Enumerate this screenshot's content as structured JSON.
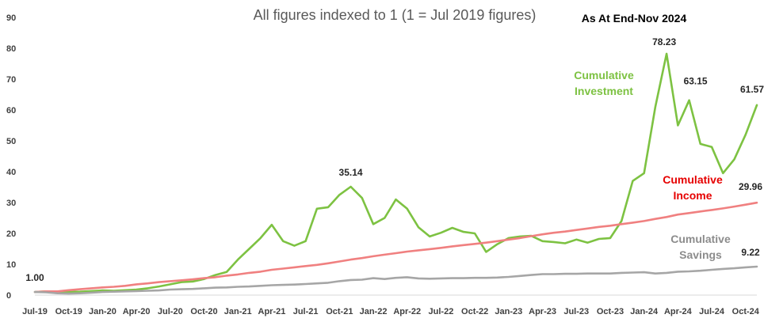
{
  "chart_data": {
    "type": "line",
    "title": "All figures indexed to 1 (1 = Jul 2019 figures)",
    "subtitle": "As At End-Nov 2024",
    "xlabel": "",
    "ylabel": "",
    "ylim": [
      0,
      90
    ],
    "yticks": [
      0,
      10,
      20,
      30,
      40,
      50,
      60,
      70,
      80,
      90
    ],
    "grid": false,
    "x": [
      "Jul-19",
      "Aug-19",
      "Sep-19",
      "Oct-19",
      "Nov-19",
      "Dec-19",
      "Jan-20",
      "Feb-20",
      "Mar-20",
      "Apr-20",
      "May-20",
      "Jun-20",
      "Jul-20",
      "Aug-20",
      "Sep-20",
      "Oct-20",
      "Nov-20",
      "Dec-20",
      "Jan-21",
      "Feb-21",
      "Mar-21",
      "Apr-21",
      "May-21",
      "Jun-21",
      "Jul-21",
      "Aug-21",
      "Sep-21",
      "Oct-21",
      "Nov-21",
      "Dec-21",
      "Jan-22",
      "Feb-22",
      "Mar-22",
      "Apr-22",
      "May-22",
      "Jun-22",
      "Jul-22",
      "Aug-22",
      "Sep-22",
      "Oct-22",
      "Nov-22",
      "Dec-22",
      "Jan-23",
      "Feb-23",
      "Mar-23",
      "Apr-23",
      "May-23",
      "Jun-23",
      "Jul-23",
      "Aug-23",
      "Sep-23",
      "Oct-23",
      "Nov-23",
      "Dec-23",
      "Jan-24",
      "Feb-24",
      "Mar-24",
      "Apr-24",
      "May-24",
      "Jun-24",
      "Jul-24",
      "Aug-24",
      "Sep-24",
      "Oct-24",
      "Nov-24"
    ],
    "xtick_labels": [
      "Jul-19",
      "Oct-19",
      "Jan-20",
      "Apr-20",
      "Jul-20",
      "Oct-20",
      "Jan-21",
      "Apr-21",
      "Jul-21",
      "Oct-21",
      "Jan-22",
      "Apr-22",
      "Jul-22",
      "Oct-22",
      "Jan-23",
      "Apr-23",
      "Jul-23",
      "Oct-23",
      "Jan-24",
      "Apr-24",
      "Jul-24",
      "Oct-24"
    ],
    "series": [
      {
        "name": "Cumulative Investment",
        "name_lines": [
          "Cumulative",
          "Investment"
        ],
        "color": "#7dc242",
        "values": [
          1.0,
          1.2,
          0.8,
          1.0,
          1.1,
          1.3,
          1.5,
          1.4,
          1.6,
          1.8,
          2.2,
          2.8,
          3.5,
          4.2,
          4.4,
          5.2,
          6.5,
          7.5,
          11.5,
          15.0,
          18.5,
          22.8,
          17.5,
          16.0,
          17.5,
          28.0,
          28.5,
          32.5,
          35.14,
          31.5,
          23.0,
          25.0,
          31.0,
          28.0,
          22.0,
          19.0,
          20.2,
          21.8,
          20.5,
          20.0,
          14.0,
          16.5,
          18.5,
          19.0,
          19.2,
          17.5,
          17.2,
          16.8,
          18.0,
          17.0,
          18.2,
          18.5,
          24.0,
          37.0,
          39.5,
          61.0,
          78.23,
          55.0,
          63.15,
          49.0,
          48.0,
          39.5,
          44.0,
          52.0,
          61.57
        ]
      },
      {
        "name": "Cumulative Income",
        "name_lines": [
          "Cumulative",
          "Income"
        ],
        "color": "#f08080",
        "values": [
          1.0,
          1.2,
          1.2,
          1.6,
          1.9,
          2.2,
          2.5,
          2.7,
          3.0,
          3.5,
          3.8,
          4.2,
          4.5,
          4.8,
          5.1,
          5.5,
          5.8,
          6.3,
          6.7,
          7.2,
          7.6,
          8.2,
          8.6,
          9.0,
          9.4,
          9.8,
          10.3,
          10.9,
          11.5,
          12.0,
          12.6,
          13.1,
          13.6,
          14.1,
          14.5,
          14.9,
          15.3,
          15.8,
          16.2,
          16.6,
          17.0,
          17.5,
          18.0,
          18.5,
          19.1,
          19.7,
          20.2,
          20.6,
          21.1,
          21.6,
          22.1,
          22.5,
          23.0,
          23.5,
          24.0,
          24.7,
          25.3,
          26.1,
          26.6,
          27.1,
          27.6,
          28.1,
          28.7,
          29.3,
          29.96
        ]
      },
      {
        "name": "Cumulative Savings",
        "name_lines": [
          "Cumulative",
          "Savings"
        ],
        "color": "#a6a6a6",
        "values": [
          1.0,
          0.9,
          0.6,
          0.5,
          0.6,
          0.8,
          1.0,
          1.1,
          1.2,
          1.3,
          1.4,
          1.5,
          1.8,
          1.9,
          2.0,
          2.2,
          2.4,
          2.5,
          2.7,
          2.8,
          3.0,
          3.2,
          3.3,
          3.4,
          3.6,
          3.8,
          4.0,
          4.5,
          4.9,
          5.0,
          5.5,
          5.2,
          5.6,
          5.8,
          5.4,
          5.3,
          5.4,
          5.5,
          5.5,
          5.6,
          5.6,
          5.7,
          5.9,
          6.2,
          6.5,
          6.8,
          6.8,
          6.9,
          6.9,
          7.0,
          7.0,
          7.0,
          7.2,
          7.3,
          7.4,
          7.0,
          7.2,
          7.6,
          7.7,
          7.9,
          8.2,
          8.5,
          8.7,
          9.0,
          9.22
        ]
      }
    ],
    "data_labels": [
      {
        "series": 0,
        "index": 0,
        "text": "1.00"
      },
      {
        "series": 0,
        "index": 28,
        "text": "35.14"
      },
      {
        "series": 0,
        "index": 56,
        "text": "78.23"
      },
      {
        "series": 0,
        "index": 58,
        "text": "63.15"
      },
      {
        "series": 0,
        "index": 64,
        "text": "61.57"
      },
      {
        "series": 1,
        "index": 64,
        "text": "29.96"
      },
      {
        "series": 2,
        "index": 64,
        "text": "9.22"
      }
    ]
  }
}
